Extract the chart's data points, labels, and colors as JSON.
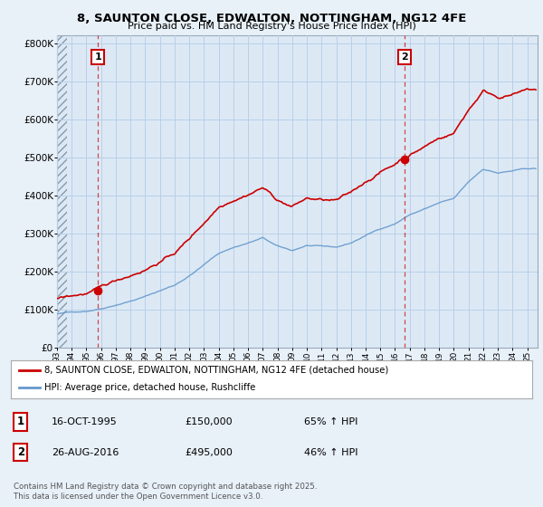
{
  "title1": "8, SAUNTON CLOSE, EDWALTON, NOTTINGHAM, NG12 4FE",
  "title2": "Price paid vs. HM Land Registry's House Price Index (HPI)",
  "ylim": [
    0,
    820000
  ],
  "yticks": [
    0,
    100000,
    200000,
    300000,
    400000,
    500000,
    600000,
    700000,
    800000
  ],
  "ytick_labels": [
    "£0",
    "£100K",
    "£200K",
    "£300K",
    "£400K",
    "£500K",
    "£600K",
    "£700K",
    "£800K"
  ],
  "background_color": "#e8f0f8",
  "plot_bg_color": "#dce9f5",
  "grid_color": "#b8cfe8",
  "red_color": "#cc0000",
  "blue_color": "#6699cc",
  "purchase1_year": 1995.79,
  "purchase1_value": 150000,
  "purchase1_label": "1",
  "purchase2_year": 2016.65,
  "purchase2_value": 495000,
  "purchase2_label": "2",
  "legend_line1": "8, SAUNTON CLOSE, EDWALTON, NOTTINGHAM, NG12 4FE (detached house)",
  "legend_line2": "HPI: Average price, detached house, Rushcliffe",
  "table_row1": [
    "1",
    "16-OCT-1995",
    "£150,000",
    "65% ↑ HPI"
  ],
  "table_row2": [
    "2",
    "26-AUG-2016",
    "£495,000",
    "46% ↑ HPI"
  ],
  "footer": "Contains HM Land Registry data © Crown copyright and database right 2025.\nThis data is licensed under the Open Government Licence v3.0.",
  "xmin": 1993.0,
  "xmax": 2025.7
}
